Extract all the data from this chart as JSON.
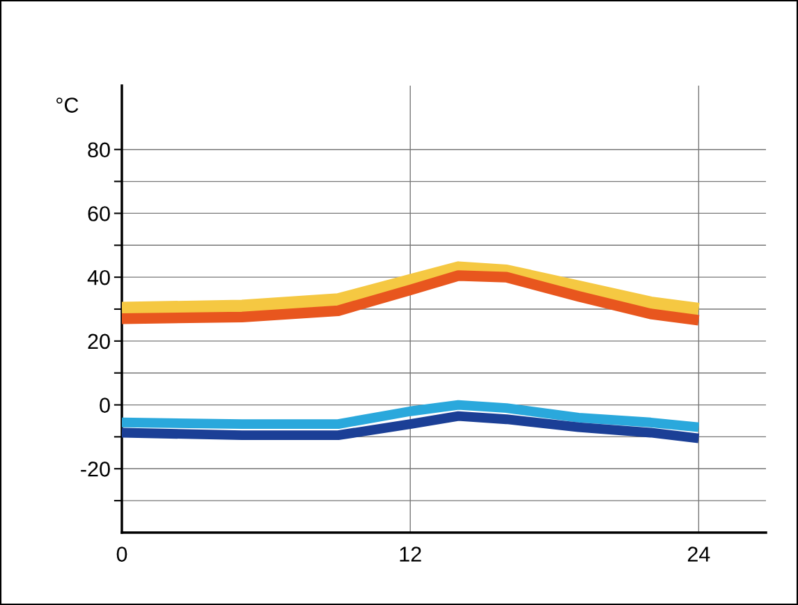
{
  "chart_data": {
    "type": "line",
    "ylabel": "°C",
    "x": [
      0,
      5,
      9,
      12,
      14,
      16,
      19,
      22,
      24
    ],
    "series": [
      {
        "color": "#f5c842",
        "values": [
          30.3,
          31,
          33,
          39,
          43,
          42,
          37,
          32,
          30
        ]
      },
      {
        "color": "#e8561e",
        "values": [
          27,
          27.5,
          29.5,
          36,
          40.5,
          40,
          34,
          28.5,
          26.5
        ]
      },
      {
        "color": "#2aa8dc",
        "values": [
          -5.5,
          -6,
          -6,
          -2,
          0,
          -1,
          -4,
          -5.5,
          -7
        ]
      },
      {
        "color": "#1b3f96",
        "values": [
          -8.7,
          -9.5,
          -9.5,
          -6,
          -3.5,
          -4.5,
          -7,
          -8.7,
          -10.5
        ]
      }
    ],
    "xlim": [
      0,
      26.8
    ],
    "xticks": [
      0,
      12,
      24
    ],
    "ylim": [
      -40,
      100
    ],
    "yticks": [
      {
        "value": -30,
        "label": null
      },
      -20,
      {
        "value": -10,
        "label": null
      },
      0,
      {
        "value": 10,
        "label": null
      },
      20,
      {
        "value": 30,
        "label": null
      },
      40,
      {
        "value": 50,
        "label": null
      },
      60,
      {
        "value": 70,
        "label": null
      },
      80
    ],
    "grid": true,
    "marker": "none",
    "line_style": "solid"
  }
}
